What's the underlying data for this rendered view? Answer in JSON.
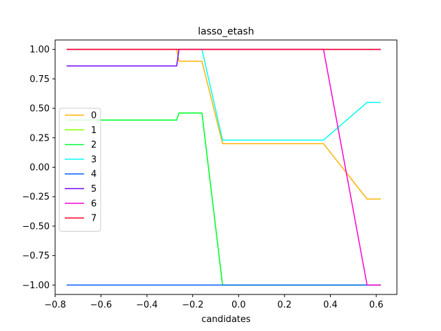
{
  "chart_data": {
    "type": "line",
    "title": "lasso_etash",
    "xlabel": "candidates",
    "ylabel": "",
    "xlim": [
      -0.8,
      0.69
    ],
    "ylim": [
      -1.08,
      1.08
    ],
    "xticks": [
      -0.8,
      -0.6,
      -0.4,
      -0.2,
      0.0,
      0.2,
      0.4,
      0.6
    ],
    "xtick_labels": [
      "−0.8",
      "−0.6",
      "−0.4",
      "−0.2",
      "0.0",
      "0.2",
      "0.4",
      "0.6"
    ],
    "yticks": [
      1.0,
      0.75,
      0.5,
      0.25,
      0.0,
      -0.25,
      -0.5,
      -0.75,
      -1.0
    ],
    "ytick_labels": [
      "1.00",
      "0.75",
      "0.50",
      "0.25",
      "0.00",
      "−0.25",
      "−0.50",
      "−0.75",
      "−1.00"
    ],
    "grid": false,
    "legend_position": "center-left",
    "series": [
      {
        "name": "0",
        "color": "#ffb300",
        "x": [
          -0.75,
          -0.27,
          -0.26,
          -0.16,
          -0.07,
          0.37,
          0.56,
          0.62
        ],
        "y": [
          1.0,
          1.0,
          0.9,
          0.9,
          0.2,
          0.2,
          -0.27,
          -0.27
        ]
      },
      {
        "name": "1",
        "color": "#84ff00",
        "x": [
          -0.75,
          -0.27,
          -0.26,
          -0.16,
          -0.07,
          0.62
        ],
        "y": [
          0.4,
          0.4,
          0.46,
          0.46,
          -1.0,
          -1.0
        ]
      },
      {
        "name": "2",
        "color": "#00ff3a",
        "x": [
          -0.75,
          -0.27,
          -0.26,
          -0.16,
          -0.07,
          0.62
        ],
        "y": [
          0.4,
          0.4,
          0.46,
          0.46,
          -1.0,
          -1.0
        ]
      },
      {
        "name": "3",
        "color": "#00fff0",
        "x": [
          -0.75,
          -0.16,
          -0.07,
          0.37,
          0.56,
          0.62
        ],
        "y": [
          1.0,
          1.0,
          0.23,
          0.23,
          0.55,
          0.55
        ]
      },
      {
        "name": "4",
        "color": "#005cff",
        "x": [
          -0.75,
          0.62
        ],
        "y": [
          -1.0,
          -1.0
        ]
      },
      {
        "name": "5",
        "color": "#7000ff",
        "x": [
          -0.75,
          -0.27,
          -0.26,
          0.62
        ],
        "y": [
          0.86,
          0.86,
          1.0,
          1.0
        ]
      },
      {
        "name": "6",
        "color": "#ff00d0",
        "x": [
          -0.75,
          0.37,
          0.56,
          0.62
        ],
        "y": [
          1.0,
          1.0,
          -1.0,
          -1.0
        ]
      },
      {
        "name": "7",
        "color": "#ff0022",
        "x": [
          -0.75,
          0.62
        ],
        "y": [
          1.0,
          1.0
        ]
      }
    ]
  }
}
